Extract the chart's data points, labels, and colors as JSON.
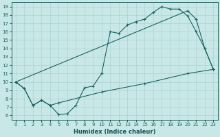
{
  "xlabel": "Humidex (Indice chaleur)",
  "bg_color": "#c8e8e8",
  "grid_color": "#afd0d0",
  "line_color": "#1a6060",
  "xlim": [
    -0.5,
    23.5
  ],
  "ylim": [
    5.5,
    19.5
  ],
  "xticks": [
    0,
    1,
    2,
    3,
    4,
    5,
    6,
    7,
    8,
    9,
    10,
    11,
    12,
    13,
    14,
    15,
    16,
    17,
    18,
    19,
    20,
    21,
    22,
    23
  ],
  "yticks": [
    6,
    7,
    8,
    9,
    10,
    11,
    12,
    13,
    14,
    15,
    16,
    17,
    18,
    19
  ],
  "curve1_x": [
    0,
    1,
    2,
    3,
    4,
    5,
    6,
    7,
    8,
    9,
    10,
    11,
    12,
    13,
    14,
    15,
    16,
    17,
    18,
    19,
    20,
    21,
    22,
    23
  ],
  "curve1_y": [
    10,
    9.2,
    7.2,
    7.8,
    7.2,
    6.1,
    6.2,
    7.2,
    9.3,
    9.5,
    11.0,
    16.0,
    15.8,
    16.8,
    17.2,
    17.5,
    18.3,
    19.0,
    18.7,
    18.7,
    17.9,
    16.0,
    14.0,
    11.5
  ],
  "curve2_x": [
    0,
    20,
    21,
    22,
    23
  ],
  "curve2_y": [
    10,
    18.5,
    17.5,
    14.0,
    11.5
  ],
  "curve3_x": [
    0,
    1,
    2,
    3,
    4,
    5,
    10,
    15,
    20,
    23
  ],
  "curve3_y": [
    10,
    9.2,
    7.2,
    7.8,
    7.2,
    7.5,
    8.8,
    9.8,
    11.0,
    11.5
  ]
}
